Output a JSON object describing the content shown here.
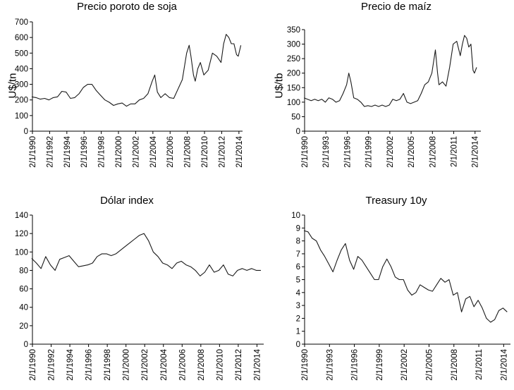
{
  "chart_data": [
    {
      "type": "line",
      "title": "Precio poroto de soja",
      "ylabel": "U$/tn",
      "xlabel": "",
      "ylim": [
        0,
        700
      ],
      "yticks": [
        0,
        100,
        200,
        300,
        400,
        500,
        600,
        700
      ],
      "xlim": [
        1990.08,
        2014.5
      ],
      "xticks": [
        1990.08,
        1992.08,
        1994.08,
        1996.08,
        1998.08,
        2000.08,
        2002.08,
        2004.08,
        2006.08,
        2008.08,
        2010.08,
        2012.08,
        2014.08
      ],
      "xtick_labels": [
        "2/1/1990",
        "2/1/1992",
        "2/1/1994",
        "2/1/1996",
        "2/1/1998",
        "2/1/2000",
        "2/1/2002",
        "2/1/2004",
        "2/1/2006",
        "2/1/2008",
        "2/1/2010",
        "2/1/2012",
        "2/1/2014"
      ],
      "series": [
        {
          "name": "Soja",
          "x": [
            1990.0,
            1990.5,
            1991.0,
            1991.5,
            1992.0,
            1992.5,
            1993.0,
            1993.5,
            1994.0,
            1994.5,
            1995.0,
            1995.5,
            1996.0,
            1996.5,
            1997.0,
            1997.5,
            1998.0,
            1998.5,
            1999.0,
            1999.5,
            2000.0,
            2000.5,
            2001.0,
            2001.5,
            2002.0,
            2002.5,
            2003.0,
            2003.5,
            2004.0,
            2004.3,
            2004.6,
            2005.0,
            2005.5,
            2006.0,
            2006.5,
            2007.0,
            2007.5,
            2008.0,
            2008.3,
            2008.5,
            2008.8,
            2009.0,
            2009.3,
            2009.6,
            2010.0,
            2010.5,
            2011.0,
            2011.5,
            2012.0,
            2012.3,
            2012.6,
            2012.9,
            2013.2,
            2013.5,
            2013.8,
            2014.0,
            2014.3
          ],
          "values": [
            220,
            215,
            205,
            210,
            200,
            215,
            220,
            255,
            250,
            210,
            215,
            240,
            280,
            300,
            300,
            260,
            230,
            200,
            185,
            165,
            175,
            180,
            160,
            175,
            175,
            200,
            210,
            240,
            320,
            360,
            250,
            215,
            240,
            215,
            210,
            270,
            330,
            500,
            550,
            480,
            360,
            320,
            400,
            440,
            360,
            390,
            500,
            480,
            440,
            560,
            620,
            600,
            560,
            560,
            490,
            480,
            550
          ]
        }
      ]
    },
    {
      "type": "line",
      "title": "Precio de maíz",
      "ylabel": "U$/tb",
      "xlabel": "",
      "ylim": [
        0,
        350
      ],
      "yticks": [
        0,
        50,
        100,
        150,
        200,
        250,
        300,
        350
      ],
      "xlim": [
        1990.08,
        2014.9
      ],
      "xticks": [
        1990.08,
        1993.08,
        1996.08,
        1999.08,
        2002.08,
        2005.08,
        2008.08,
        2011.08,
        2014.08
      ],
      "xtick_labels": [
        "2/1/1990",
        "2/1/1993",
        "2/1/1996",
        "2/1/1999",
        "2/1/2002",
        "2/1/2005",
        "2/1/2008",
        "2/1/2011",
        "2/1/2014"
      ],
      "series": [
        {
          "name": "Maíz",
          "x": [
            1990.0,
            1990.5,
            1991.0,
            1991.5,
            1992.0,
            1992.5,
            1993.0,
            1993.5,
            1994.0,
            1994.5,
            1995.0,
            1995.5,
            1996.0,
            1996.3,
            1996.6,
            1997.0,
            1997.5,
            1998.0,
            1998.5,
            1999.0,
            1999.5,
            2000.0,
            2000.5,
            2001.0,
            2001.5,
            2002.0,
            2002.5,
            2003.0,
            2003.5,
            2004.0,
            2004.5,
            2005.0,
            2005.5,
            2006.0,
            2006.5,
            2007.0,
            2007.5,
            2008.0,
            2008.5,
            2008.8,
            2009.0,
            2009.5,
            2010.0,
            2010.5,
            2011.0,
            2011.5,
            2012.0,
            2012.3,
            2012.6,
            2012.9,
            2013.2,
            2013.5,
            2013.8,
            2014.0,
            2014.3
          ],
          "values": [
            115,
            110,
            105,
            110,
            105,
            110,
            100,
            115,
            110,
            100,
            105,
            130,
            160,
            200,
            170,
            115,
            110,
            100,
            85,
            88,
            85,
            90,
            85,
            90,
            85,
            90,
            110,
            105,
            110,
            130,
            100,
            95,
            100,
            105,
            130,
            160,
            170,
            200,
            280,
            200,
            160,
            170,
            155,
            220,
            300,
            310,
            260,
            300,
            330,
            320,
            290,
            300,
            210,
            200,
            220
          ]
        }
      ]
    },
    {
      "type": "line",
      "title": "Dólar index",
      "ylabel": "",
      "xlabel": "",
      "ylim": [
        0,
        140
      ],
      "yticks": [
        0,
        20,
        40,
        60,
        80,
        100,
        120,
        140
      ],
      "xlim": [
        1990.08,
        2014.8
      ],
      "xticks": [
        1990.08,
        1992.08,
        1994.08,
        1996.08,
        1998.08,
        2000.08,
        2002.08,
        2004.08,
        2006.08,
        2008.08,
        2010.08,
        2012.08,
        2014.08
      ],
      "xtick_labels": [
        "2/1/1990",
        "2/1/1992",
        "2/1/1994",
        "2/1/1996",
        "2/1/1998",
        "2/1/2000",
        "2/1/2002",
        "2/1/2004",
        "2/1/2006",
        "2/1/2008",
        "2/1/2010",
        "2/1/2012",
        "2/1/2014"
      ],
      "series": [
        {
          "name": "Dólar index",
          "x": [
            1990.0,
            1990.5,
            1991.0,
            1991.5,
            1992.0,
            1992.5,
            1993.0,
            1993.5,
            1994.0,
            1994.5,
            1995.0,
            1995.5,
            1996.0,
            1996.5,
            1997.0,
            1997.5,
            1998.0,
            1998.5,
            1999.0,
            1999.5,
            2000.0,
            2000.5,
            2001.0,
            2001.5,
            2002.0,
            2002.5,
            2003.0,
            2003.5,
            2004.0,
            2004.5,
            2005.0,
            2005.5,
            2006.0,
            2006.5,
            2007.0,
            2007.5,
            2008.0,
            2008.5,
            2009.0,
            2009.5,
            2010.0,
            2010.5,
            2011.0,
            2011.5,
            2012.0,
            2012.5,
            2013.0,
            2013.5,
            2014.0,
            2014.5
          ],
          "values": [
            93,
            88,
            82,
            95,
            86,
            80,
            92,
            94,
            96,
            90,
            84,
            85,
            86,
            88,
            95,
            98,
            98,
            96,
            98,
            102,
            106,
            110,
            114,
            118,
            120,
            112,
            100,
            95,
            88,
            86,
            82,
            88,
            90,
            86,
            84,
            80,
            74,
            78,
            86,
            78,
            80,
            86,
            76,
            74,
            80,
            82,
            80,
            82,
            80,
            80
          ]
        }
      ]
    },
    {
      "type": "line",
      "title": "Treasury 10y",
      "ylabel": "",
      "xlabel": "",
      "ylim": [
        0,
        10
      ],
      "yticks": [
        0,
        1,
        2,
        3,
        4,
        5,
        6,
        7,
        8,
        9,
        10
      ],
      "xlim": [
        1990.08,
        2014.9
      ],
      "xticks": [
        1990.08,
        1993.08,
        1996.08,
        1999.08,
        2002.08,
        2005.08,
        2008.08,
        2011.08,
        2014.08
      ],
      "xtick_labels": [
        "2/1/1990",
        "2/1/1993",
        "2/1/1996",
        "2/1/1999",
        "2/1/2002",
        "2/1/2005",
        "2/1/2008",
        "2/1/2011",
        "2/1/2014"
      ],
      "series": [
        {
          "name": "Treasury 10y",
          "x": [
            1990.0,
            1990.5,
            1991.0,
            1991.5,
            1992.0,
            1992.5,
            1993.0,
            1993.5,
            1994.0,
            1994.5,
            1995.0,
            1995.5,
            1996.0,
            1996.5,
            1997.0,
            1997.5,
            1998.0,
            1998.5,
            1999.0,
            1999.5,
            2000.0,
            2000.5,
            2001.0,
            2001.5,
            2002.0,
            2002.5,
            2003.0,
            2003.5,
            2004.0,
            2004.5,
            2005.0,
            2005.5,
            2006.0,
            2006.5,
            2007.0,
            2007.5,
            2008.0,
            2008.5,
            2009.0,
            2009.5,
            2010.0,
            2010.5,
            2011.0,
            2011.5,
            2012.0,
            2012.5,
            2013.0,
            2013.5,
            2014.0,
            2014.5
          ],
          "values": [
            8.8,
            8.7,
            8.2,
            8.0,
            7.3,
            6.8,
            6.2,
            5.6,
            6.5,
            7.3,
            7.8,
            6.5,
            5.8,
            6.8,
            6.5,
            6.0,
            5.5,
            5.0,
            5.0,
            6.0,
            6.6,
            6.0,
            5.2,
            5.0,
            5.0,
            4.2,
            3.8,
            4.0,
            4.6,
            4.4,
            4.2,
            4.1,
            4.6,
            5.1,
            4.8,
            5.0,
            3.8,
            4.0,
            2.5,
            3.5,
            3.7,
            2.9,
            3.4,
            2.8,
            2.0,
            1.7,
            1.9,
            2.6,
            2.8,
            2.5
          ]
        }
      ]
    }
  ]
}
